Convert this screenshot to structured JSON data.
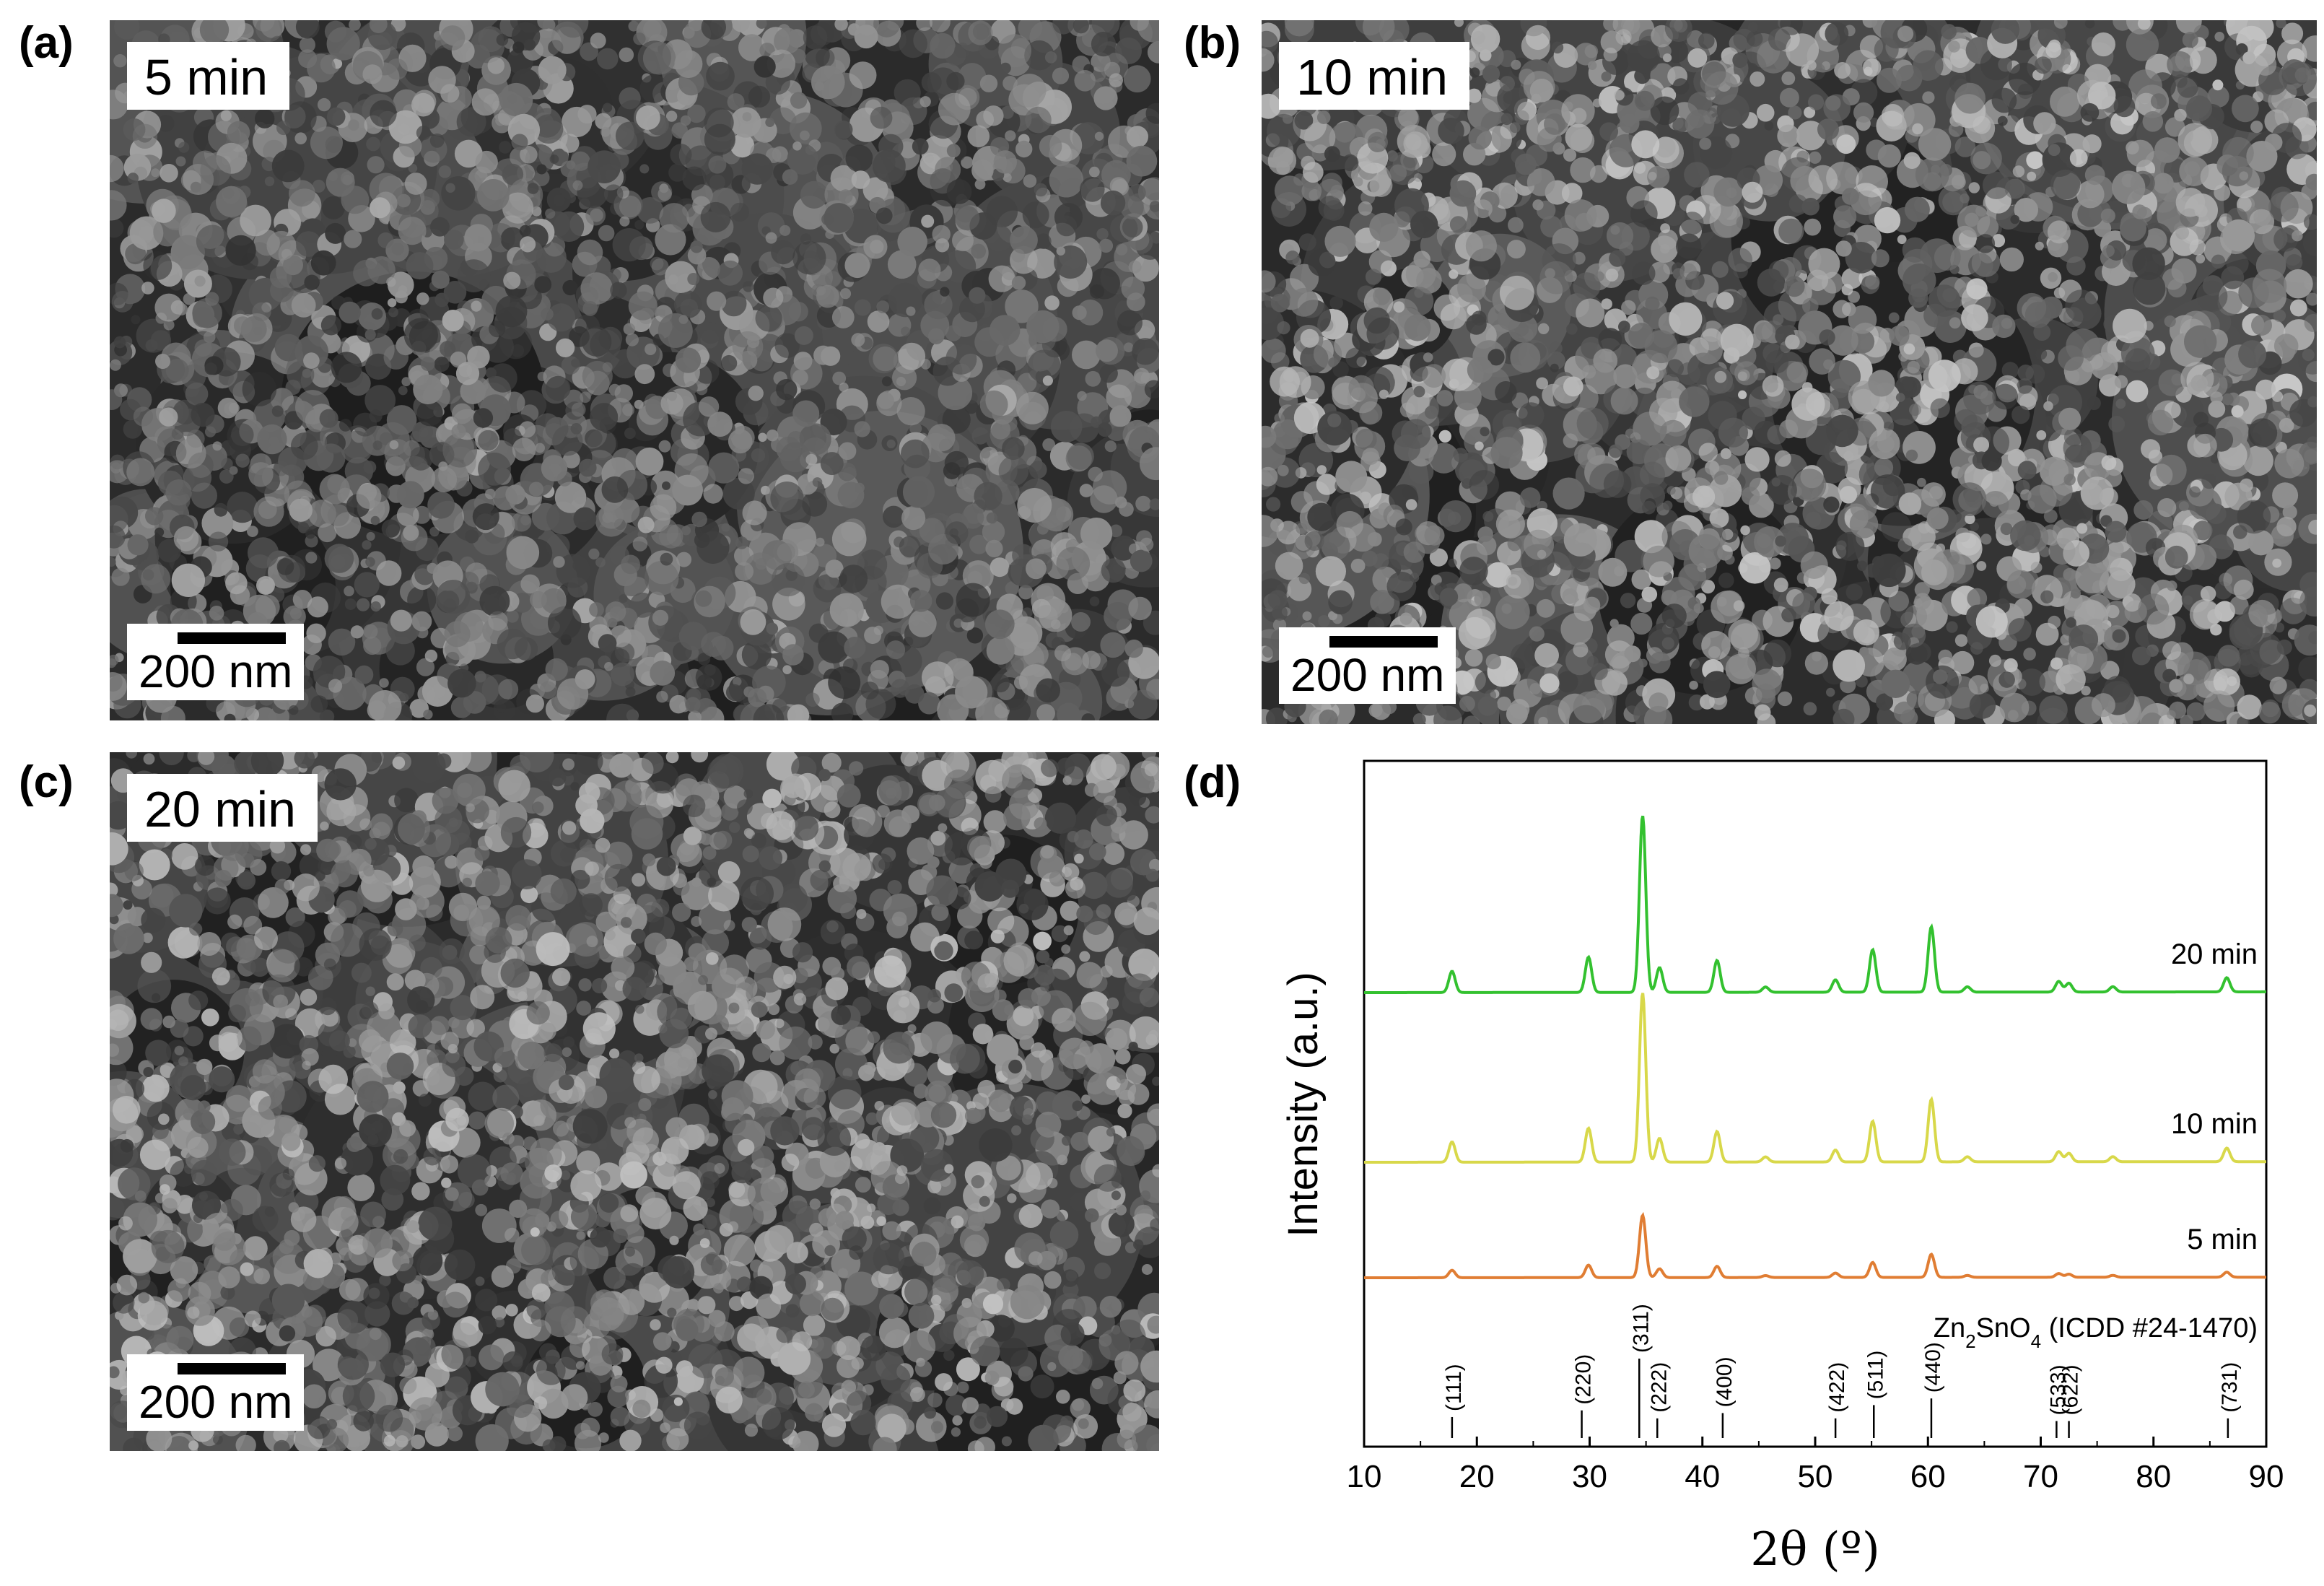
{
  "panels": {
    "a": {
      "letter": "(a)",
      "time": "5 min",
      "scale": "200 nm"
    },
    "b": {
      "letter": "(b)",
      "time": "10 min",
      "scale": "200 nm"
    },
    "c": {
      "letter": "(c)",
      "time": "20 min",
      "scale": "200 nm"
    },
    "d": {
      "letter": "(d)"
    }
  },
  "chart_data": {
    "type": "line",
    "xlabel": "2θ (º)",
    "ylabel": "Intensity (a.u.)",
    "xlim": [
      10,
      90
    ],
    "xticks": [
      10,
      20,
      30,
      40,
      50,
      60,
      70,
      80,
      90
    ],
    "series": [
      {
        "name": "20 min",
        "color": "#33c12f",
        "offset": 0.0,
        "scale": 1.0
      },
      {
        "name": "10 min",
        "color": "#d8d84a",
        "offset": 1.0,
        "scale": 0.92
      },
      {
        "name": "5 min",
        "color": "#e07d33",
        "offset": 2.0,
        "scale": 0.48
      }
    ],
    "peaks": [
      {
        "x": 17.8,
        "h": 0.12
      },
      {
        "x": 29.9,
        "h": 0.2
      },
      {
        "x": 34.7,
        "h": 1.0
      },
      {
        "x": 36.2,
        "h": 0.14
      },
      {
        "x": 41.3,
        "h": 0.18
      },
      {
        "x": 45.6,
        "h": 0.03
      },
      {
        "x": 51.8,
        "h": 0.07
      },
      {
        "x": 55.1,
        "h": 0.24
      },
      {
        "x": 60.3,
        "h": 0.37
      },
      {
        "x": 63.5,
        "h": 0.03
      },
      {
        "x": 71.6,
        "h": 0.06
      },
      {
        "x": 72.5,
        "h": 0.05
      },
      {
        "x": 76.4,
        "h": 0.03
      },
      {
        "x": 86.5,
        "h": 0.08
      }
    ],
    "reference": {
      "label_main": "Zn",
      "label_sub1": "2",
      "label_mid": "SnO",
      "label_sub2": "4",
      "label_tail": " (ICDD #24-1470)",
      "lines": [
        {
          "x": 17.8,
          "hkl": "(111)",
          "h": 0.12
        },
        {
          "x": 29.3,
          "hkl": "(220)",
          "h": 0.22
        },
        {
          "x": 34.4,
          "hkl": "(311)",
          "h": 1.0
        },
        {
          "x": 36.0,
          "hkl": "(222)",
          "h": 0.1
        },
        {
          "x": 41.8,
          "hkl": "(400)",
          "h": 0.18
        },
        {
          "x": 51.8,
          "hkl": "(422)",
          "h": 0.1
        },
        {
          "x": 55.2,
          "hkl": "(511)",
          "h": 0.3
        },
        {
          "x": 60.3,
          "hkl": "(440)",
          "h": 0.4
        },
        {
          "x": 71.4,
          "hkl": "(533)",
          "h": 0.06
        },
        {
          "x": 72.5,
          "hkl": "(622)",
          "h": 0.06
        },
        {
          "x": 86.6,
          "hkl": "(731)",
          "h": 0.1
        }
      ]
    }
  }
}
